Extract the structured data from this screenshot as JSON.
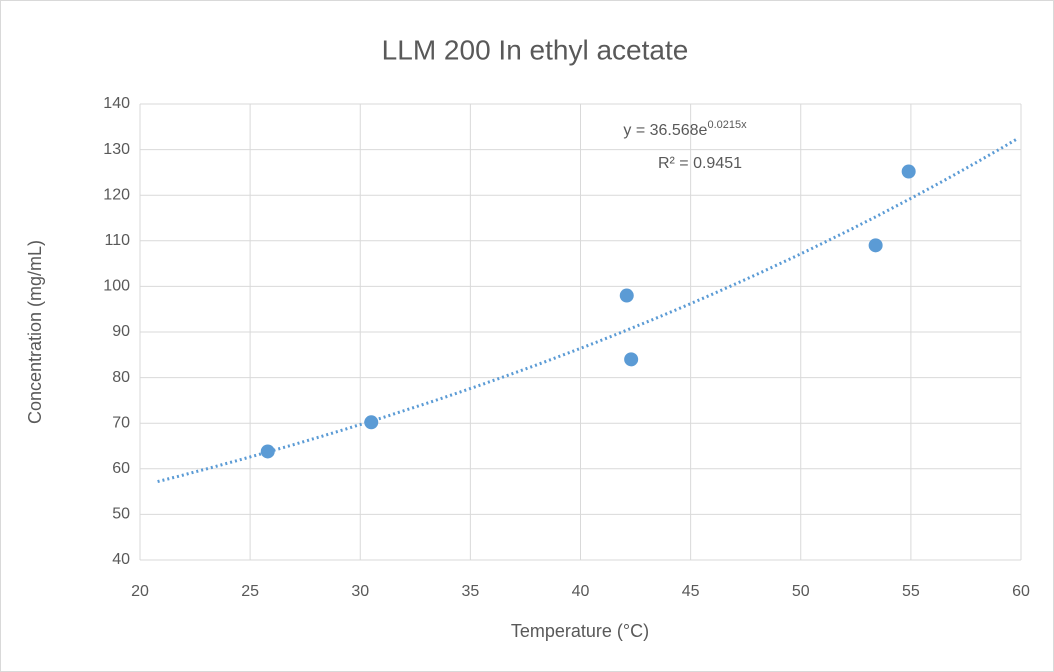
{
  "chart_data": {
    "type": "scatter",
    "title": "LLM 200 In ethyl acetate",
    "x_label": "Temperature (°C)",
    "y_label": "Concentration (mg/mL)",
    "series": [
      {
        "name": "Concentration",
        "color": "#5b9bd5",
        "x": [
          25.8,
          30.5,
          42.1,
          42.3,
          53.4,
          54.9
        ],
        "values": [
          63.8,
          70.2,
          98,
          84,
          109,
          125.2
        ]
      }
    ],
    "trendline": {
      "type": "exponential",
      "a": 36.568,
      "b": 0.0215,
      "x_start": 20.8,
      "x_end": 59.8,
      "equation_base": "y = 36.568e",
      "equation_exponent": "0.0215x",
      "r_squared": "R² = 0.9451"
    },
    "xlim": [
      20,
      60
    ],
    "xticks": [
      20,
      25,
      30,
      35,
      40,
      45,
      50,
      55,
      60
    ],
    "ylim": [
      40,
      140
    ],
    "yticks": [
      40,
      50,
      60,
      70,
      80,
      90,
      100,
      110,
      120,
      130,
      140
    ],
    "grid": true
  }
}
